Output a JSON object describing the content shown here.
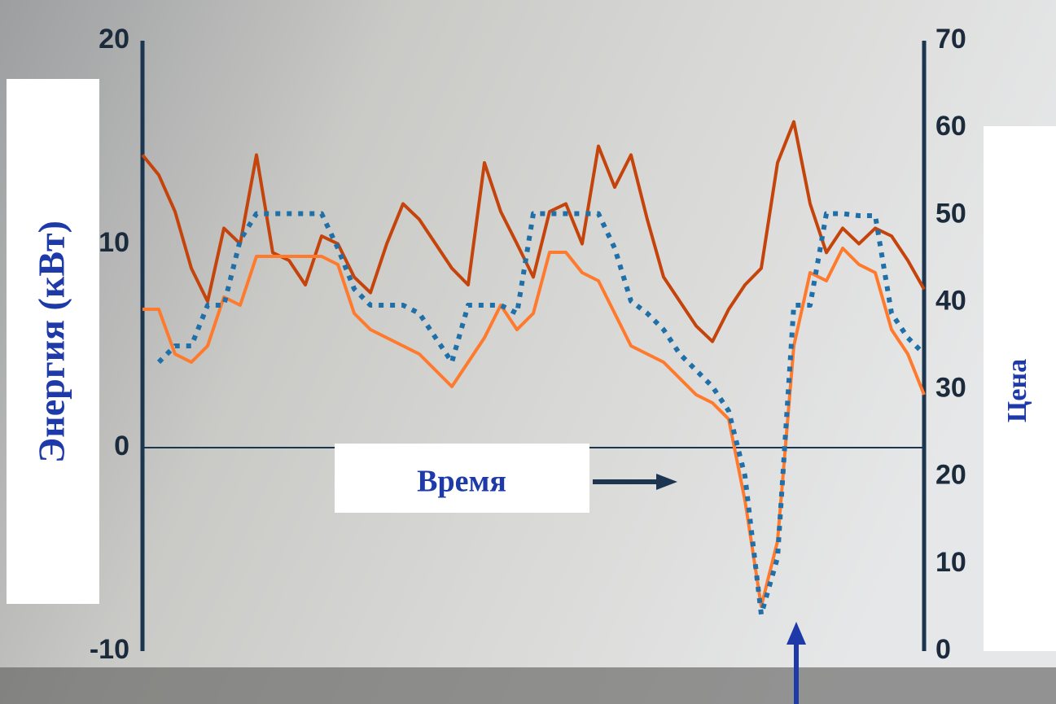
{
  "chart_data": {
    "type": "line",
    "y_label": "Энергия (кВт)",
    "y2_label": "Цена",
    "x_label": "Время",
    "categories": [
      null,
      null,
      null,
      null,
      null,
      null,
      null,
      null,
      null,
      null,
      null,
      null,
      null,
      null,
      null,
      null,
      null,
      null,
      null,
      null,
      null,
      null,
      null,
      null,
      null,
      null,
      null,
      null,
      null,
      null,
      null,
      null,
      null,
      null,
      null,
      null,
      null,
      null,
      null,
      null,
      null,
      null,
      null,
      null,
      null,
      null,
      null,
      null,
      null
    ],
    "ylim": [
      -10,
      20
    ],
    "yticks": [
      -10,
      0,
      10,
      20
    ],
    "y2lim": [
      0,
      70
    ],
    "y2ticks": [
      0,
      10,
      20,
      30,
      40,
      50,
      60,
      70
    ],
    "grid": false,
    "series": [
      {
        "color": "#c4440c",
        "axis": "y2",
        "values": [
          56.9,
          54.6,
          50.4,
          43.9,
          40.1,
          48.5,
          46.7,
          56.9,
          45.7,
          44.8,
          42,
          47.6,
          46.7,
          42.9,
          41.1,
          46.7,
          51.3,
          49.5,
          46.7,
          43.9,
          42,
          56,
          50.4,
          46.7,
          42.9,
          50.4,
          51.3,
          46.7,
          57.9,
          53.2,
          56.9,
          49.5,
          42.9,
          40.1,
          37.3,
          35.5,
          39.2,
          42,
          43.9,
          56,
          60.7,
          51.3,
          45.7,
          48.5,
          46.7,
          48.5,
          47.6,
          44.8,
          41.5
        ]
      },
      {
        "color": "#ff7a2c",
        "values": [
          6.8,
          6.8,
          4.6,
          4.2,
          5,
          7.4,
          7,
          9.4,
          9.4,
          9.4,
          9.4,
          9.4,
          9,
          6.6,
          5.8,
          5.4,
          5,
          4.6,
          3.8,
          3,
          4.2,
          5.4,
          7,
          5.8,
          6.6,
          9.6,
          9.6,
          8.6,
          8.2,
          6.6,
          5,
          4.6,
          4.2,
          3.4,
          2.6,
          2.2,
          1.4,
          -2.6,
          -7.8,
          -4.6,
          5,
          8.6,
          8.2,
          9.8,
          9,
          8.6,
          5.8,
          4.6,
          2.6
        ]
      },
      {
        "color": "#1f6fa8",
        "style": "dotted",
        "values": [
          null,
          4.2,
          5,
          5,
          7,
          7,
          10.2,
          11.5,
          11.5,
          11.5,
          11.5,
          11.5,
          9.8,
          7.8,
          7,
          7,
          7,
          6.6,
          5.4,
          4.2,
          7,
          7,
          7,
          6.6,
          11.5,
          11.5,
          11.5,
          11.5,
          11.5,
          9.8,
          7.2,
          6.6,
          5.8,
          4.6,
          3.8,
          3,
          1.8,
          -1.4,
          -8.2,
          -5.4,
          7,
          7,
          11.5,
          11.5,
          11.4,
          11.4,
          6.6,
          5.4,
          4.6
        ]
      }
    ]
  }
}
